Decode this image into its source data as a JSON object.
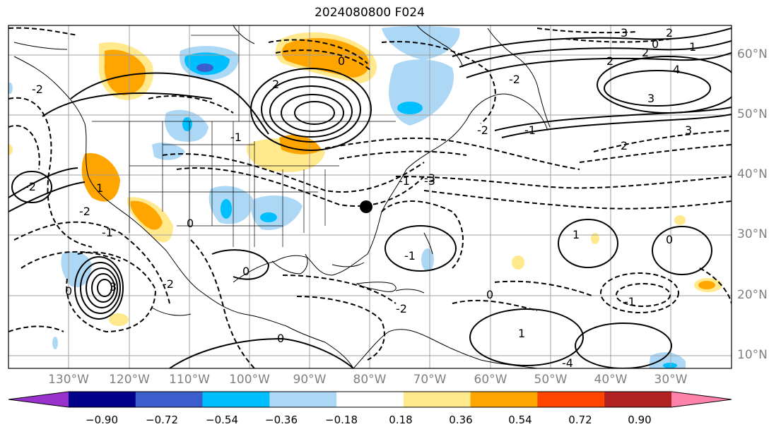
{
  "title": "2024080800 F024",
  "lat_labels": [
    "60°N",
    "50°N",
    "40°N",
    "30°N",
    "20°N",
    "10°N"
  ],
  "lon_labels": [
    "130°W",
    "120°W",
    "110°W",
    "100°W",
    "90°W",
    "80°W",
    "70°W",
    "60°W",
    "50°W",
    "40°W",
    "30°W"
  ],
  "colorbar": {
    "ticks": [
      "−0.90",
      "−0.72",
      "−0.54",
      "−0.36",
      "−0.18",
      "0.18",
      "0.36",
      "0.54",
      "0.72",
      "0.90"
    ],
    "colors": [
      "#9932cc",
      "#00008b",
      "#3a5fcd",
      "#00bfff",
      "#add8f5",
      "#ffffff",
      "#ffe98c",
      "#ffa500",
      "#ff4500",
      "#b22222",
      "#ff82ab"
    ]
  },
  "contour_labels": [
    "0",
    "2",
    "2",
    "3",
    "2",
    "0",
    "1",
    "4",
    "3",
    "3",
    "2",
    "-2",
    "-1",
    "-2",
    "2",
    "-1",
    "-3",
    "-1",
    "-2",
    "-2",
    "1",
    "3",
    "-2",
    "0",
    "-1",
    "0",
    "0",
    "-1",
    "0",
    "-2",
    "0",
    "1",
    "0",
    "-1",
    "-3",
    "-2",
    "1",
    "-4"
  ],
  "marker": "city-dot"
}
